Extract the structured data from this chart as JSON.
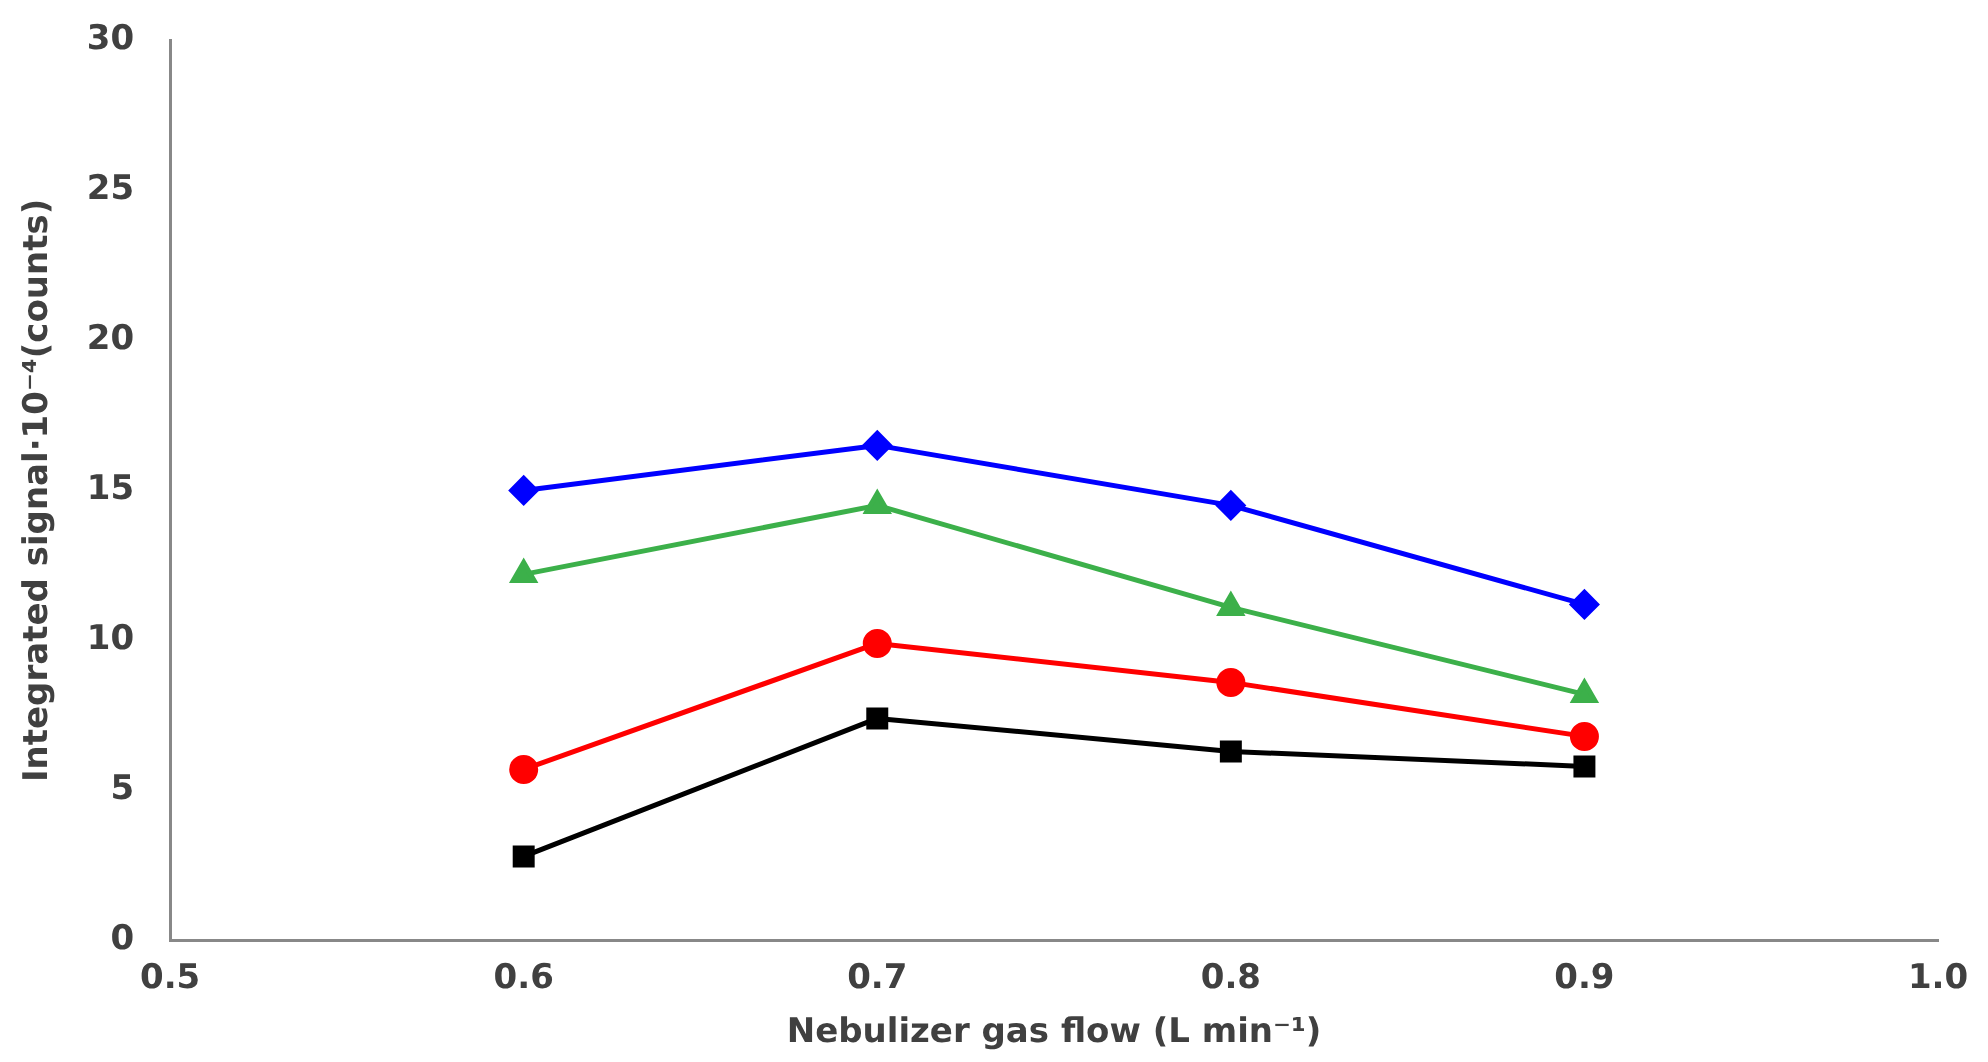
{
  "chart_data": {
    "type": "line",
    "xlabel": "Nebulizer gas flow (L min⁻¹)",
    "ylabel": "Integrated signal·10⁻⁴(counts)",
    "x": [
      0.6,
      0.7,
      0.8,
      0.9
    ],
    "series": [
      {
        "color": "#0000ff",
        "marker": "diamond",
        "values": [
          15.0,
          16.5,
          14.5,
          11.2
        ]
      },
      {
        "color": "#3cb04a",
        "marker": "triangle",
        "values": [
          12.2,
          14.5,
          11.1,
          8.2
        ]
      },
      {
        "color": "#ff0000",
        "marker": "circle",
        "values": [
          5.7,
          9.9,
          8.6,
          6.8
        ]
      },
      {
        "color": "#000000",
        "marker": "square",
        "values": [
          2.8,
          7.4,
          6.3,
          5.8
        ]
      }
    ],
    "xlim": [
      0.5,
      1.0
    ],
    "xticks": [
      0.5,
      0.6,
      0.7,
      0.8,
      0.9,
      {
        "value": 1.0,
        "label": "1.0"
      }
    ],
    "ylim": [
      0,
      30
    ],
    "yticks": [
      0,
      5,
      10,
      15,
      20,
      25,
      30
    ],
    "grid": false,
    "legend": false,
    "line_style": "solid"
  }
}
